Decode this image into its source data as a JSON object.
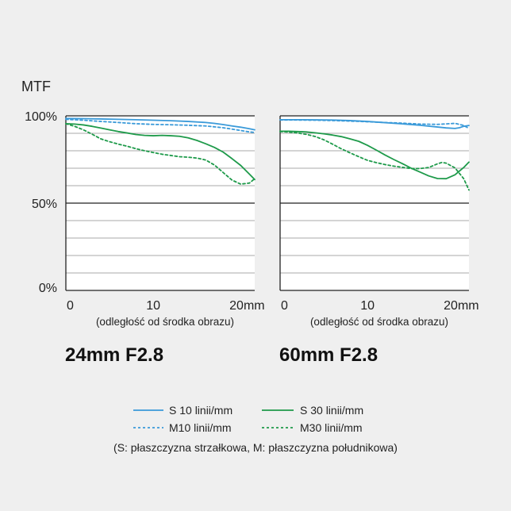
{
  "figure": {
    "y_axis_label": "MTF",
    "y_ticks": [
      "100%",
      "50%",
      "0%"
    ],
    "x_ticks": [
      "0",
      "10",
      "20mm"
    ],
    "x_axis_caption": "(odległość od środka obrazu)",
    "colors": {
      "s10": "#3a9ad9",
      "m10": "#3a9ad9",
      "s30": "#1e9a4a",
      "m30": "#1e9a4a"
    }
  },
  "legend": {
    "s10": "S 10 linii/mm",
    "s30": "S 30 linii/mm",
    "m10": "M10 linii/mm",
    "m30": "M30 linii/mm",
    "note": "(S: płaszczyzna strzałkowa, M: płaszczyzna południkowa)"
  },
  "chart_data": [
    {
      "type": "line",
      "title": "24mm F2.8",
      "xlabel": "(odległość od środka obrazu)",
      "ylabel": "MTF",
      "xlim": [
        0,
        21.6
      ],
      "ylim": [
        0,
        100
      ],
      "grid": true,
      "series": [
        {
          "name": "S 10 linii/mm",
          "style": "solid",
          "color": "#3a9ad9",
          "x": [
            0,
            2,
            4,
            6,
            8,
            10,
            12,
            14,
            16,
            17,
            18,
            19,
            20,
            21,
            21.6
          ],
          "y": [
            98.5,
            98.4,
            98.2,
            98.0,
            97.8,
            97.5,
            97.2,
            96.8,
            96.2,
            95.7,
            95.0,
            94.2,
            93.5,
            92.6,
            92.0
          ]
        },
        {
          "name": "M10 linii/mm",
          "style": "dashed",
          "color": "#3a9ad9",
          "x": [
            0,
            2,
            4,
            6,
            8,
            10,
            12,
            14,
            16,
            18,
            20,
            21,
            21.6
          ],
          "y": [
            98.0,
            97.5,
            96.8,
            96.2,
            95.5,
            95.1,
            94.9,
            94.6,
            94.2,
            93.2,
            91.6,
            90.8,
            90.5
          ]
        },
        {
          "name": "S 30 linii/mm",
          "style": "solid",
          "color": "#1e9a4a",
          "x": [
            0,
            1,
            2,
            3,
            4,
            5,
            6,
            7,
            8,
            9,
            10,
            11,
            12,
            13,
            14,
            15,
            16,
            17,
            18,
            19,
            20,
            21,
            21.6
          ],
          "y": [
            95.5,
            95.3,
            94.8,
            94.0,
            93.0,
            92.0,
            91.0,
            90.2,
            89.3,
            88.8,
            88.6,
            88.8,
            88.6,
            88.3,
            87.4,
            85.9,
            84.0,
            81.9,
            79.2,
            75.5,
            71.6,
            66.6,
            63.5
          ]
        },
        {
          "name": "M30 linii/mm",
          "style": "dashed",
          "color": "#1e9a4a",
          "x": [
            0,
            1,
            2,
            3,
            4,
            5,
            6,
            7,
            8,
            9,
            10,
            11,
            12,
            13,
            14,
            15,
            16,
            17,
            18,
            19,
            20,
            21,
            21.6
          ],
          "y": [
            95.5,
            94.0,
            92.0,
            89.5,
            86.8,
            85.2,
            83.8,
            82.6,
            81.2,
            80.0,
            79.0,
            78.0,
            77.3,
            76.6,
            76.3,
            75.8,
            74.7,
            71.8,
            67.5,
            63.2,
            60.9,
            61.5,
            64.0
          ]
        }
      ]
    },
    {
      "type": "line",
      "title": "60mm F2.8",
      "xlabel": "(odległość od środka obrazu)",
      "ylabel": "MTF",
      "xlim": [
        0,
        21.6
      ],
      "ylim": [
        0,
        100
      ],
      "grid": true,
      "series": [
        {
          "name": "S 10 linii/mm",
          "style": "solid",
          "color": "#3a9ad9",
          "x": [
            0,
            2,
            4,
            6,
            8,
            10,
            12,
            14,
            16,
            18,
            19,
            20,
            20.5,
            21,
            21.6
          ],
          "y": [
            97.8,
            97.8,
            97.7,
            97.6,
            97.3,
            96.8,
            96.1,
            95.4,
            94.6,
            93.6,
            93.1,
            92.8,
            93.2,
            94.0,
            94.5
          ]
        },
        {
          "name": "M10 linii/mm",
          "style": "dashed",
          "color": "#3a9ad9",
          "x": [
            0,
            2,
            4,
            6,
            8,
            10,
            12,
            14,
            16,
            18,
            19,
            20,
            21,
            21.6
          ],
          "y": [
            97.6,
            97.6,
            97.5,
            97.3,
            97.0,
            96.6,
            96.2,
            95.8,
            95.3,
            95.1,
            95.4,
            95.7,
            94.5,
            92.8
          ]
        },
        {
          "name": "S 30 linii/mm",
          "style": "solid",
          "color": "#1e9a4a",
          "x": [
            0,
            1,
            2,
            3,
            4,
            5,
            6,
            7,
            8,
            9,
            10,
            11,
            12,
            13,
            14,
            15,
            16,
            17,
            18,
            19,
            20,
            21,
            21.6
          ],
          "y": [
            91.2,
            91.2,
            91.0,
            90.8,
            90.3,
            89.7,
            89.0,
            88.1,
            86.8,
            85.4,
            83.1,
            80.4,
            77.6,
            75.0,
            72.6,
            70.0,
            67.8,
            65.6,
            64.1,
            64.0,
            66.2,
            70.4,
            73.5
          ]
        },
        {
          "name": "M30 linii/mm",
          "style": "dashed",
          "color": "#1e9a4a",
          "x": [
            0,
            1,
            2,
            3,
            4,
            5,
            6,
            7,
            8,
            9,
            10,
            11,
            12,
            13,
            14,
            15,
            16,
            17,
            18,
            18.5,
            19,
            20,
            21,
            21.6
          ],
          "y": [
            91.0,
            90.7,
            90.2,
            89.4,
            88.2,
            86.3,
            83.8,
            81.1,
            78.8,
            76.6,
            74.5,
            73.2,
            72.1,
            71.2,
            70.5,
            69.8,
            69.8,
            70.4,
            72.5,
            73.3,
            72.9,
            70.2,
            64.0,
            57.5
          ]
        }
      ]
    }
  ]
}
